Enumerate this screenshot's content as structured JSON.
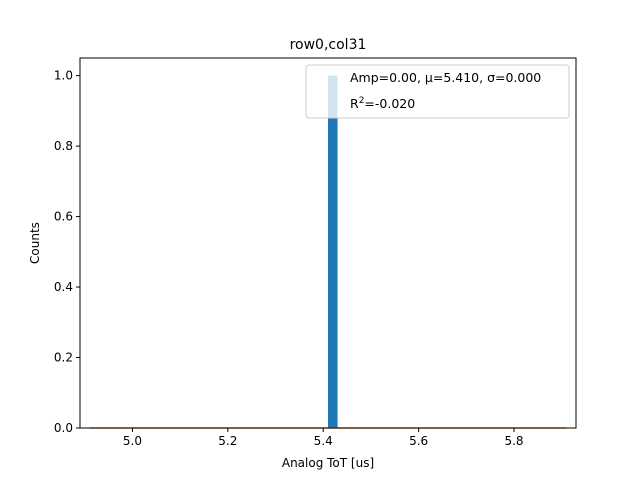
{
  "chart_data": {
    "type": "bar",
    "title": "row0,col31",
    "xlabel": "Analog ToT [us]",
    "ylabel": "Counts",
    "xlim": [
      4.89,
      5.93
    ],
    "ylim": [
      0,
      1.05
    ],
    "xticks": [
      5.0,
      5.2,
      5.4,
      5.6,
      5.8
    ],
    "xtick_labels": [
      "5.0",
      "5.2",
      "5.4",
      "5.6",
      "5.8"
    ],
    "yticks": [
      0.0,
      0.2,
      0.4,
      0.6,
      0.8,
      1.0
    ],
    "ytick_labels": [
      "0.0",
      "0.2",
      "0.4",
      "0.6",
      "0.8",
      "1.0"
    ],
    "histogram": {
      "bin_edges": [
        5.41,
        5.43
      ],
      "counts": [
        1
      ],
      "color": "#1f77b4"
    },
    "fit_line": {
      "x": [
        4.91,
        5.91
      ],
      "y": [
        0,
        0
      ],
      "color": "#ff7f0e"
    },
    "legend": {
      "placement": "top-right",
      "line1": "Amp=0.00, μ=5.410, σ=0.000",
      "line2_prefix": "R",
      "line2_sup": "2",
      "line2_suffix": "=-0.020"
    },
    "grid": false
  }
}
